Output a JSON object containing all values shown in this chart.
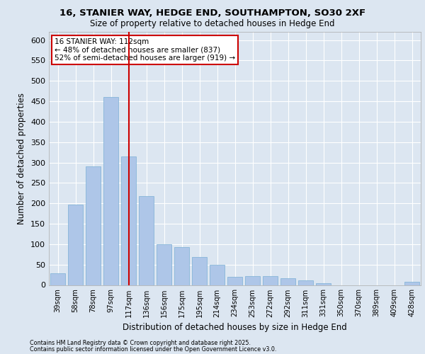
{
  "title_line1": "16, STANIER WAY, HEDGE END, SOUTHAMPTON, SO30 2XF",
  "title_line2": "Size of property relative to detached houses in Hedge End",
  "xlabel": "Distribution of detached houses by size in Hedge End",
  "ylabel": "Number of detached properties",
  "categories": [
    "39sqm",
    "58sqm",
    "78sqm",
    "97sqm",
    "117sqm",
    "136sqm",
    "156sqm",
    "175sqm",
    "195sqm",
    "214sqm",
    "234sqm",
    "253sqm",
    "272sqm",
    "292sqm",
    "311sqm",
    "331sqm",
    "350sqm",
    "370sqm",
    "389sqm",
    "409sqm",
    "428sqm"
  ],
  "values": [
    28,
    197,
    291,
    460,
    315,
    218,
    100,
    93,
    68,
    50,
    20,
    22,
    22,
    17,
    12,
    5,
    0,
    0,
    0,
    0,
    8
  ],
  "bar_color": "#aec6e8",
  "bar_edge_color": "#7aafd4",
  "annotation_line1": "16 STANIER WAY: 112sqm",
  "annotation_line2": "← 48% of detached houses are smaller (837)",
  "annotation_line3": "52% of semi-detached houses are larger (919) →",
  "annotation_box_color": "#ffffff",
  "annotation_box_edge": "#cc0000",
  "vline_color": "#cc0000",
  "ylim": [
    0,
    620
  ],
  "yticks": [
    0,
    50,
    100,
    150,
    200,
    250,
    300,
    350,
    400,
    450,
    500,
    550,
    600
  ],
  "bg_color": "#dce6f1",
  "plot_bg_color": "#dce6f1",
  "grid_color": "#ffffff",
  "footer_line1": "Contains HM Land Registry data © Crown copyright and database right 2025.",
  "footer_line2": "Contains public sector information licensed under the Open Government Licence v3.0."
}
